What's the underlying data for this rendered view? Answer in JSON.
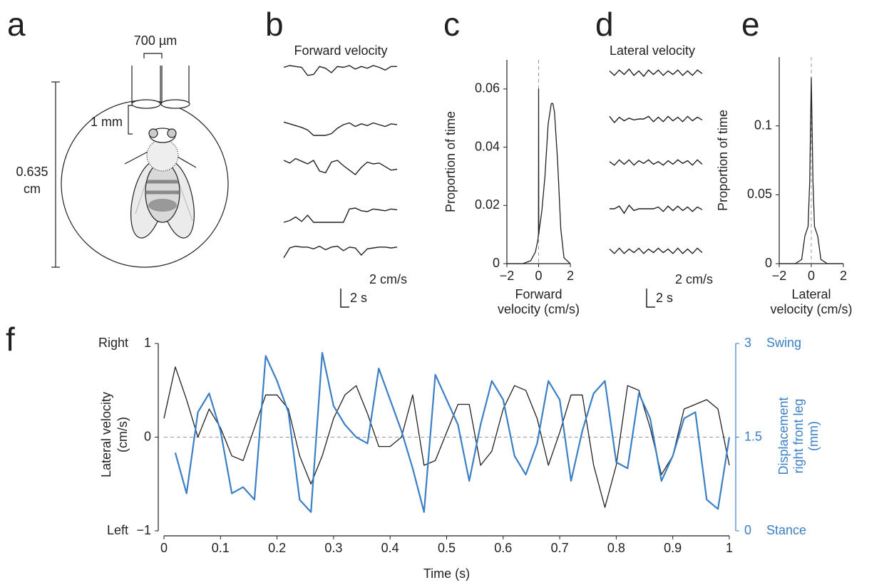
{
  "diagram": {
    "label": "a",
    "tube_width": "700 µm",
    "distance": "1 mm",
    "diameter": [
      "0.635",
      "cm"
    ]
  },
  "chart_data": [
    {
      "type": "line",
      "label": "b",
      "title": "Forward velocity",
      "scale_bar": {
        "y": "2 cm/s",
        "x": "2 s"
      },
      "series": [
        {
          "color": "#231f20",
          "values": [
            1.4,
            1.6,
            1.5,
            1.4,
            0.5,
            0.6,
            1.5,
            1.3,
            0.8,
            1.5,
            1.4,
            1.6,
            1.2,
            1.5,
            1.3,
            1.6,
            1.4,
            1.1,
            1.5,
            1.5
          ]
        },
        {
          "color": "#231f20",
          "values": [
            1.5,
            1.3,
            1.1,
            0.9,
            0.6,
            0,
            0,
            0,
            0.2,
            0.8,
            1.2,
            1.4,
            1.0,
            1.3,
            1.1,
            1.4,
            1.2,
            1.0,
            1.3,
            1.2
          ]
        },
        {
          "color": "#231f20",
          "values": [
            1.6,
            1.3,
            1.8,
            1.5,
            1.2,
            1.6,
            0.4,
            0.2,
            1.4,
            1.6,
            1.0,
            0.5,
            0,
            0.8,
            1.4,
            1.2,
            1.3,
            0.9,
            0.5,
            0.6
          ]
        },
        {
          "color": "#231f20",
          "values": [
            0,
            0.2,
            0.6,
            0.1,
            0.8,
            0,
            0,
            0,
            0,
            0,
            0,
            1.5,
            1.6,
            1.3,
            1.2,
            1.5,
            1.4,
            1.3,
            1.5,
            1.4
          ]
        },
        {
          "color": "#231f20",
          "values": [
            0.5,
            1.6,
            1.8,
            1.7,
            1.7,
            1.5,
            1.8,
            1.4,
            1.7,
            1.8,
            1.3,
            1.7,
            1.6,
            0.8,
            1.5,
            1.6,
            1.7,
            1.7,
            1.6,
            1.7
          ]
        }
      ]
    },
    {
      "type": "line",
      "label": "c",
      "ylabel": "Proportion of time",
      "xlabel": [
        "Forward",
        "velocity (cm/s)"
      ],
      "x": [
        -2,
        -1,
        -0.5,
        -0.2,
        -0.05,
        -0.01,
        0,
        0.01,
        0.05,
        0.2,
        0.4,
        0.6,
        0.8,
        0.9,
        1.0,
        1.2,
        1.4,
        1.6,
        2
      ],
      "series": [
        {
          "color": "#231f20",
          "values": [
            0,
            0,
            0.001,
            0.004,
            0.008,
            0.01,
            0.06,
            0.01,
            0.012,
            0.018,
            0.03,
            0.048,
            0.055,
            0.055,
            0.052,
            0.035,
            0.012,
            0.002,
            0
          ]
        }
      ],
      "xlim": [
        -2,
        2
      ],
      "xticks": [
        {
          "value": -2,
          "label": "−2"
        },
        0,
        2
      ],
      "ylim": [
        0,
        0.07
      ],
      "yticks": [
        0,
        0.02,
        0.04,
        0.06
      ],
      "zero_line": true
    },
    {
      "type": "line",
      "label": "d",
      "title": "Lateral velocity",
      "scale_bar": {
        "y": "2 cm/s",
        "x": "2 s"
      },
      "series": [
        {
          "color": "#231f20",
          "values": [
            0.2,
            -0.3,
            0.3,
            -0.2,
            0.4,
            -0.3,
            0.2,
            -0.4,
            0.3,
            -0.2,
            0.3,
            -0.3,
            0.2,
            -0.2,
            0.3,
            -0.3,
            0.2,
            -0.3,
            0.3,
            -0.1
          ]
        },
        {
          "color": "#231f20",
          "values": [
            0.3,
            -0.4,
            0.2,
            -0.2,
            0.1,
            -0.1,
            0,
            0,
            0.3,
            -0.3,
            0.2,
            -0.3,
            0.3,
            -0.2,
            0.2,
            -0.3,
            0.3,
            -0.2,
            0.2,
            -0.1
          ]
        },
        {
          "color": "#231f20",
          "values": [
            0.1,
            -0.3,
            0.3,
            -0.2,
            0.3,
            -0.3,
            0.2,
            -0.1,
            0.3,
            -0.2,
            0.1,
            -0.3,
            0.2,
            -0.2,
            0.3,
            -0.1,
            0.2,
            -0.3,
            0.3,
            -0.2
          ]
        },
        {
          "color": "#231f20",
          "values": [
            0,
            0,
            0.3,
            -0.5,
            0.4,
            -0.2,
            0,
            0,
            0,
            0,
            0.2,
            -0.3,
            0.3,
            -0.2,
            0.3,
            -0.2,
            0.2,
            -0.3,
            0.2,
            -0.1
          ]
        },
        {
          "color": "#231f20",
          "values": [
            0.2,
            -0.3,
            0.3,
            -0.3,
            0.2,
            -0.2,
            0.3,
            -0.3,
            0.2,
            -0.2,
            0.3,
            -0.2,
            0.2,
            -0.3,
            0.3,
            -0.3,
            0.2,
            -0.3,
            0.3,
            -0.2
          ]
        }
      ]
    },
    {
      "type": "line",
      "label": "e",
      "ylabel": "Proportion of time",
      "xlabel": [
        "Lateral",
        "velocity (cm/s)"
      ],
      "x": [
        -2,
        -1,
        -0.6,
        -0.4,
        -0.2,
        -0.1,
        0,
        0.1,
        0.2,
        0.4,
        0.6,
        1,
        2
      ],
      "series": [
        {
          "color": "#231f20",
          "values": [
            0,
            0,
            0.003,
            0.02,
            0.027,
            0.06,
            0.135,
            0.06,
            0.027,
            0.02,
            0.003,
            0,
            0
          ]
        }
      ],
      "xlim": [
        -2,
        2
      ],
      "xticks": [
        {
          "value": -2,
          "label": "−2"
        },
        0,
        2
      ],
      "ylim": [
        0,
        0.15
      ],
      "yticks": [
        0,
        0.05,
        0.1
      ],
      "zero_line": true
    },
    {
      "type": "line",
      "label": "f",
      "xlabel": "Time (s)",
      "ylabel": [
        "Lateral velocity",
        "(cm/s)"
      ],
      "y2label": [
        "Displacement",
        "right front leg",
        "(mm)"
      ],
      "ytick_notes": {
        "top": "Right",
        "bottom": "Left"
      },
      "y2tick_notes": {
        "top": "Swing",
        "bottom": "Stance"
      },
      "x": [
        0,
        0.02,
        0.04,
        0.06,
        0.08,
        0.1,
        0.12,
        0.14,
        0.16,
        0.18,
        0.2,
        0.22,
        0.24,
        0.26,
        0.28,
        0.3,
        0.32,
        0.34,
        0.36,
        0.38,
        0.4,
        0.42,
        0.44,
        0.46,
        0.48,
        0.5,
        0.52,
        0.54,
        0.56,
        0.58,
        0.6,
        0.62,
        0.64,
        0.66,
        0.68,
        0.7,
        0.72,
        0.74,
        0.76,
        0.78,
        0.8,
        0.82,
        0.84,
        0.86,
        0.88,
        0.9,
        0.92,
        0.94,
        0.96,
        0.98,
        1
      ],
      "series": [
        {
          "color": "#231f20",
          "values": [
            0.2,
            0.75,
            0.4,
            0,
            0.3,
            0.1,
            -0.2,
            -0.25,
            0.1,
            0.45,
            0.45,
            0.3,
            -0.2,
            -0.5,
            -0.2,
            0.2,
            0.45,
            0.55,
            0.25,
            -0.1,
            -0.1,
            0,
            0.45,
            -0.3,
            -0.25,
            0.05,
            0.35,
            0.35,
            -0.3,
            -0.15,
            0.3,
            0.55,
            0.5,
            0.2,
            -0.3,
            0.05,
            0.45,
            0.45,
            -0.3,
            -0.75,
            -0.3,
            0.55,
            0.5,
            0.1,
            -0.4,
            -0.2,
            0.3,
            0.35,
            0.4,
            0.3,
            -0.3
          ]
        },
        {
          "color": "#3b7fc4",
          "axis": "y2",
          "values": [
            null,
            1.25,
            0.6,
            1.9,
            2.2,
            1.6,
            0.6,
            0.7,
            0.5,
            2.8,
            2.4,
            1.9,
            0.5,
            0.3,
            2.85,
            2.0,
            1.7,
            1.5,
            1.4,
            2.6,
            2.1,
            1.6,
            1.0,
            0.3,
            2.5,
            2.1,
            1.7,
            0.8,
            1.7,
            2.4,
            2.1,
            1.2,
            0.9,
            1.4,
            2.4,
            2.1,
            0.8,
            1.6,
            2.2,
            2.4,
            1.1,
            1.0,
            2.2,
            1.8,
            0.8,
            1.2,
            1.8,
            1.9,
            0.5,
            0.35,
            1.5
          ]
        }
      ],
      "xlim": [
        0,
        1
      ],
      "xticks": [
        0,
        0.1,
        0.2,
        0.3,
        0.4,
        0.5,
        0.6,
        0.7,
        0.8,
        0.9,
        1
      ],
      "ylim": [
        -1,
        1
      ],
      "yticks": [
        {
          "value": -1,
          "label": "−1"
        },
        0,
        1
      ],
      "y2lim": [
        0,
        3
      ],
      "y2ticks": [
        0,
        1.5,
        3
      ],
      "zero_line": true
    }
  ]
}
